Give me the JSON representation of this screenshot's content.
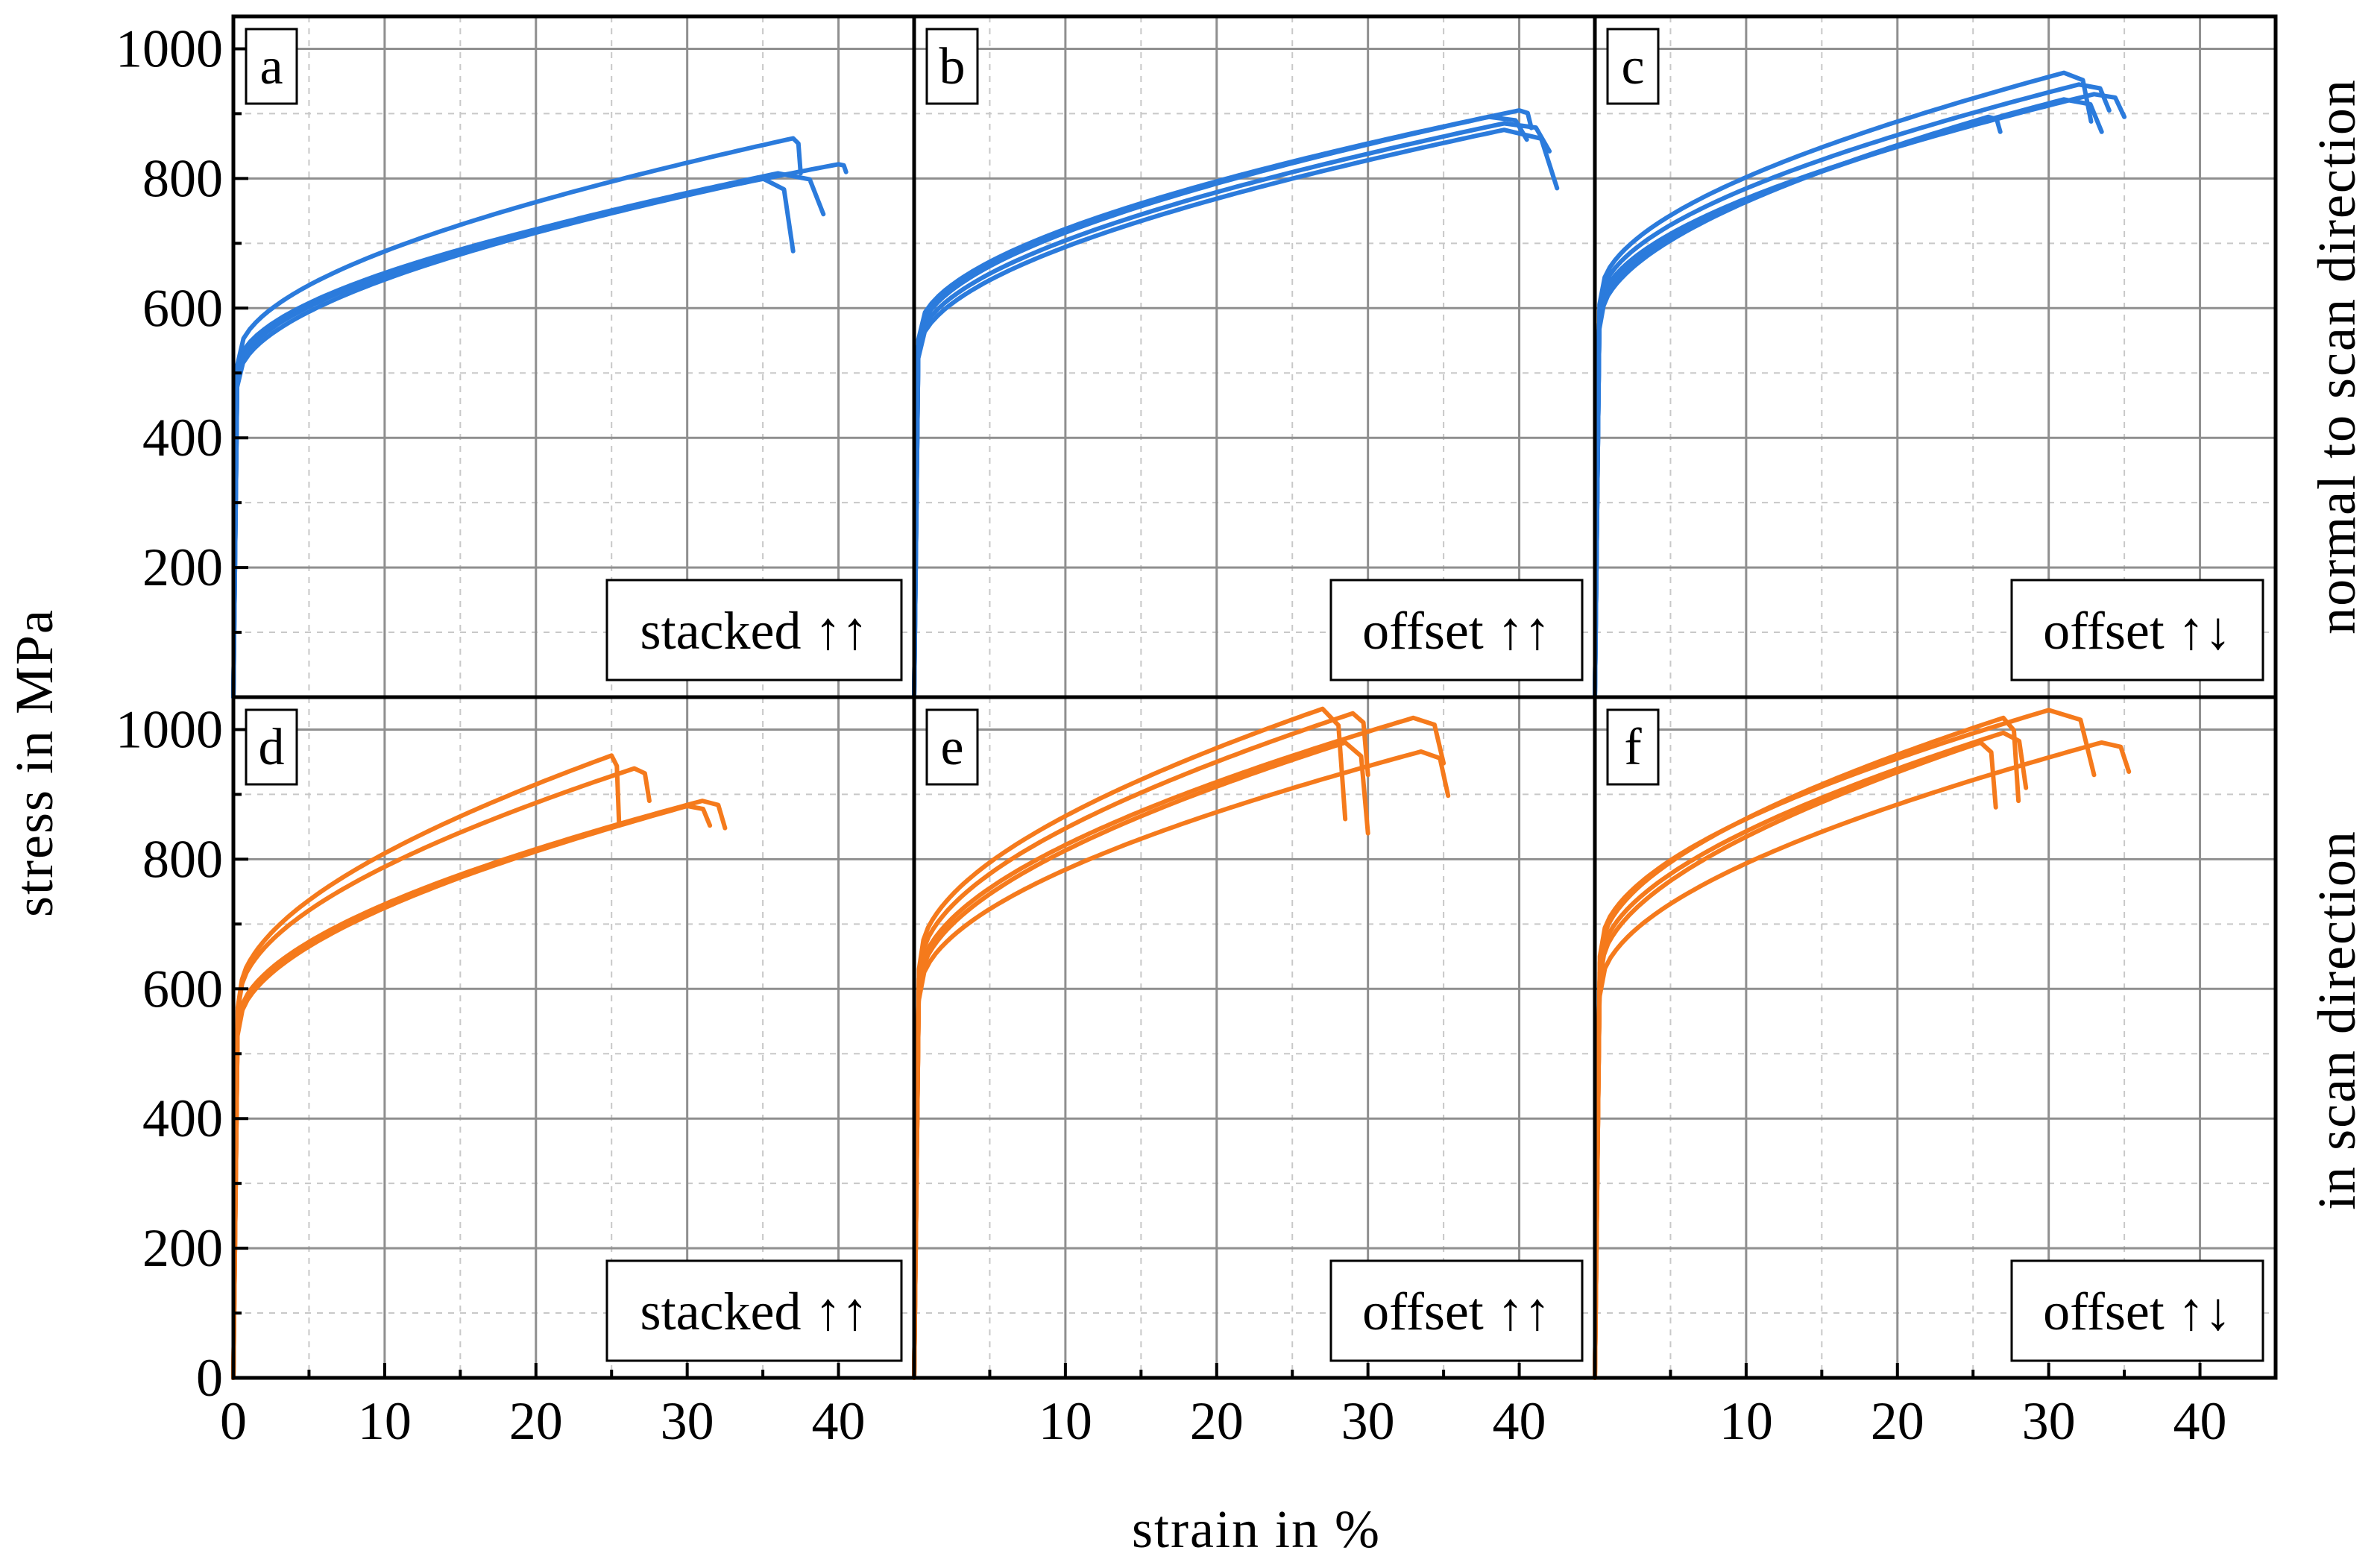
{
  "chart_data": {
    "type": "line",
    "xlabel": "strain  in  %",
    "ylabel": "stress  in  MPa",
    "xlim": [
      0,
      45
    ],
    "ylim": [
      0,
      1050
    ],
    "x_ticks": [
      "0",
      "10",
      "20",
      "30",
      "40"
    ],
    "x_ticks_inner": [
      "10",
      "20",
      "30",
      "40"
    ],
    "y_ticks": [
      "0",
      "200",
      "400",
      "600",
      "800",
      "1000"
    ],
    "grid": true,
    "row_labels": [
      "normal to scan direction",
      "in scan direction"
    ],
    "colors": {
      "normal": "#2b7bdc",
      "scan": "#f57a1c"
    },
    "panels": [
      {
        "letter": "a",
        "label": "stacked ↑↑",
        "row": 0,
        "col": 0,
        "curves": [
          {
            "ys": 520,
            "uts": 862,
            "eu": 37.0,
            "ef": 37.5,
            "fs": 808
          },
          {
            "ys": 505,
            "uts": 822,
            "eu": 40.0,
            "ef": 40.5,
            "fs": 810
          },
          {
            "ys": 495,
            "uts": 808,
            "eu": 36.0,
            "ef": 39.0,
            "fs": 745
          },
          {
            "ys": 485,
            "uts": 800,
            "eu": 35.0,
            "ef": 37.0,
            "fs": 688
          }
        ]
      },
      {
        "letter": "b",
        "label": "offset ↑↑",
        "row": 0,
        "col": 1,
        "curves": [
          {
            "ys": 560,
            "uts": 905,
            "eu": 40.0,
            "ef": 40.8,
            "fs": 878
          },
          {
            "ys": 550,
            "uts": 895,
            "eu": 38.0,
            "ef": 40.5,
            "fs": 860
          },
          {
            "ys": 540,
            "uts": 885,
            "eu": 39.0,
            "ef": 42.0,
            "fs": 842
          },
          {
            "ys": 530,
            "uts": 875,
            "eu": 39.0,
            "ef": 42.5,
            "fs": 785
          }
        ]
      },
      {
        "letter": "c",
        "label": "offset ↑↓",
        "row": 0,
        "col": 2,
        "curves": [
          {
            "ys": 615,
            "uts": 963,
            "eu": 31.0,
            "ef": 32.8,
            "fs": 888
          },
          {
            "ys": 605,
            "uts": 945,
            "eu": 32.0,
            "ef": 34.0,
            "fs": 905
          },
          {
            "ys": 595,
            "uts": 930,
            "eu": 33.0,
            "ef": 35.0,
            "fs": 895
          },
          {
            "ys": 585,
            "uts": 922,
            "eu": 31.0,
            "ef": 33.5,
            "fs": 872
          },
          {
            "ys": 575,
            "uts": 895,
            "eu": 26.0,
            "ef": 26.8,
            "fs": 872
          }
        ]
      },
      {
        "letter": "d",
        "label": "stacked ↑↑",
        "row": 1,
        "col": 0,
        "curves": [
          {
            "ys": 580,
            "uts": 960,
            "eu": 25.0,
            "ef": 25.5,
            "fs": 852
          },
          {
            "ys": 575,
            "uts": 940,
            "eu": 26.5,
            "ef": 27.5,
            "fs": 890
          },
          {
            "ys": 545,
            "uts": 890,
            "eu": 31.0,
            "ef": 32.5,
            "fs": 848
          },
          {
            "ys": 535,
            "uts": 882,
            "eu": 30.0,
            "ef": 31.5,
            "fs": 852
          }
        ]
      },
      {
        "letter": "e",
        "label": "offset ↑↑",
        "row": 1,
        "col": 1,
        "curves": [
          {
            "ys": 640,
            "uts": 1032,
            "eu": 27.0,
            "ef": 28.5,
            "fs": 862
          },
          {
            "ys": 625,
            "uts": 1025,
            "eu": 29.0,
            "ef": 30.0,
            "fs": 930
          },
          {
            "ys": 610,
            "uts": 1018,
            "eu": 33.0,
            "ef": 35.0,
            "fs": 948
          },
          {
            "ys": 600,
            "uts": 980,
            "eu": 28.5,
            "ef": 30.0,
            "fs": 840
          },
          {
            "ys": 590,
            "uts": 966,
            "eu": 33.5,
            "ef": 35.3,
            "fs": 898
          }
        ]
      },
      {
        "letter": "f",
        "label": "offset ↑↓",
        "row": 1,
        "col": 2,
        "curves": [
          {
            "ys": 660,
            "uts": 1030,
            "eu": 30.0,
            "ef": 33.0,
            "fs": 930
          },
          {
            "ys": 650,
            "uts": 1018,
            "eu": 27.0,
            "ef": 28.0,
            "fs": 890
          },
          {
            "ys": 635,
            "uts": 995,
            "eu": 27.0,
            "ef": 28.5,
            "fs": 910
          },
          {
            "ys": 620,
            "uts": 980,
            "eu": 25.5,
            "ef": 26.5,
            "fs": 880
          },
          {
            "ys": 595,
            "uts": 980,
            "eu": 33.5,
            "ef": 35.3,
            "fs": 935
          }
        ]
      }
    ]
  }
}
